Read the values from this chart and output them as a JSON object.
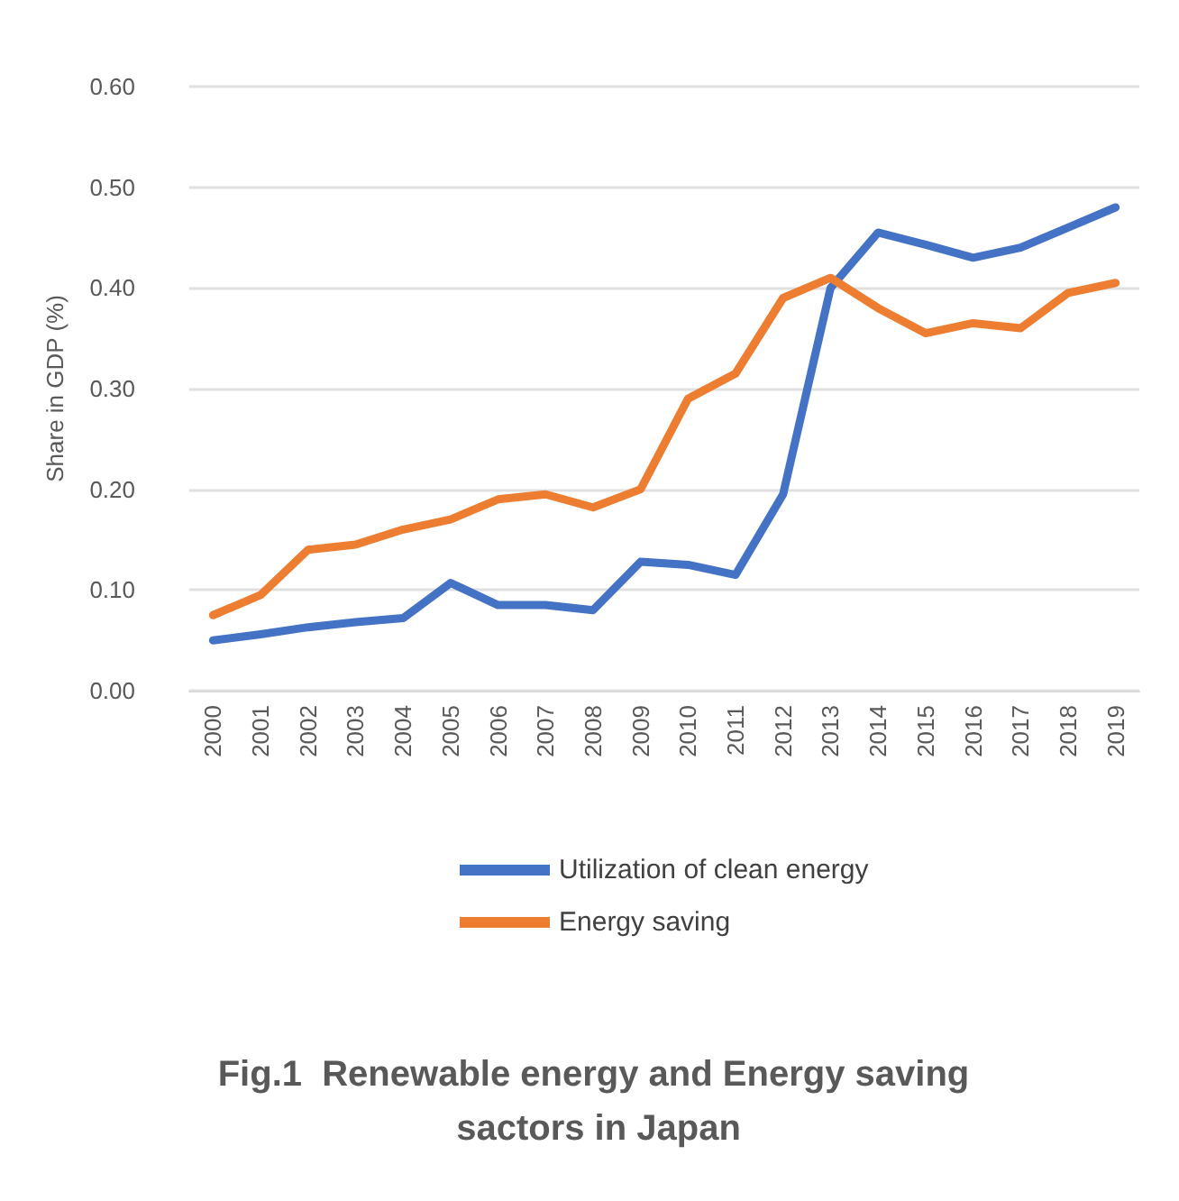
{
  "chart_data": {
    "type": "line",
    "title": "Fig.1  Renewable energy and Energy saving sactors in Japan",
    "ylabel": "Share in GDP (%)",
    "categories": [
      "2000",
      "2001",
      "2002",
      "2003",
      "2004",
      "2005",
      "2006",
      "2007",
      "2008",
      "2009",
      "2010",
      "2011",
      "2012",
      "2013",
      "2014",
      "2015",
      "2016",
      "2017",
      "2018",
      "2019"
    ],
    "series": [
      {
        "name": "Utilization of clean energy",
        "color": "#4472c4",
        "values": [
          0.05,
          0.056,
          0.063,
          0.068,
          0.072,
          0.107,
          0.085,
          0.085,
          0.08,
          0.128,
          0.125,
          0.115,
          0.195,
          0.4,
          0.455,
          0.443,
          0.43,
          0.44,
          0.46,
          0.48
        ]
      },
      {
        "name": "Energy saving",
        "color": "#ed7d31",
        "values": [
          0.075,
          0.095,
          0.14,
          0.145,
          0.16,
          0.17,
          0.19,
          0.195,
          0.182,
          0.2,
          0.29,
          0.315,
          0.39,
          0.41,
          0.38,
          0.355,
          0.365,
          0.36,
          0.395,
          0.405
        ]
      }
    ],
    "ylim": [
      0,
      0.6
    ],
    "yticks": [
      {
        "value": 0,
        "label": "0.00"
      },
      {
        "value": 0.1,
        "label": "0.10"
      },
      {
        "value": 0.2,
        "label": "0.20"
      },
      {
        "value": 0.3,
        "label": "0.30"
      },
      {
        "value": 0.4,
        "label": "0.40"
      },
      {
        "value": 0.5,
        "label": "0.50"
      },
      {
        "value": 0.6,
        "label": "0.60"
      }
    ],
    "grid": "y",
    "legend": "bottom",
    "marker": "none",
    "line_style": "solid"
  }
}
